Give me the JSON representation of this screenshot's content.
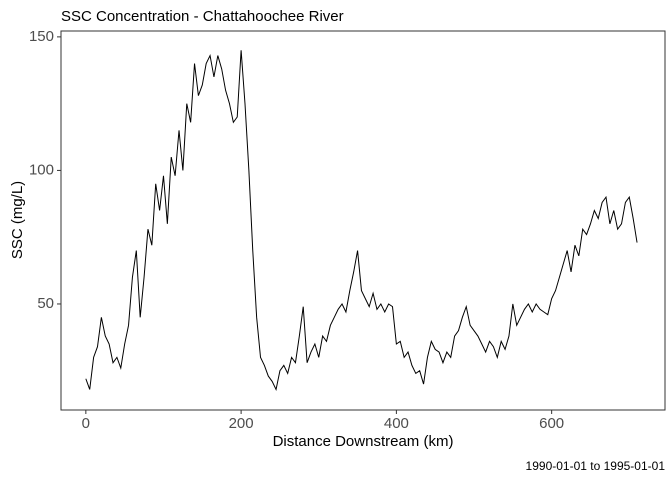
{
  "chart_data": {
    "type": "line",
    "title": "SSC Concentration - Chattahoochee River",
    "x_label": "Distance Downstream (km)",
    "y_label": "SSC (mg/L)",
    "caption": "1990-01-01 to 1995-01-01",
    "xlim": [
      -32,
      746
    ],
    "ylim": [
      10.3,
      152.2
    ],
    "xticks": [
      0,
      200,
      400,
      600
    ],
    "yticks": [
      50,
      100,
      150
    ],
    "grid": false,
    "series": [
      {
        "name": "SSC",
        "color": "#000000",
        "x": [
          0,
          5,
          10,
          15,
          20,
          25,
          30,
          35,
          40,
          45,
          50,
          55,
          60,
          65,
          70,
          75,
          80,
          85,
          90,
          95,
          100,
          105,
          110,
          115,
          120,
          125,
          130,
          135,
          140,
          145,
          150,
          155,
          160,
          165,
          170,
          175,
          180,
          185,
          190,
          195,
          200,
          205,
          210,
          215,
          220,
          225,
          230,
          235,
          240,
          245,
          250,
          255,
          260,
          265,
          270,
          275,
          280,
          285,
          290,
          295,
          300,
          305,
          310,
          315,
          320,
          325,
          330,
          335,
          340,
          345,
          350,
          355,
          360,
          365,
          370,
          375,
          380,
          385,
          390,
          395,
          400,
          405,
          410,
          415,
          420,
          425,
          430,
          435,
          440,
          445,
          450,
          455,
          460,
          465,
          470,
          475,
          480,
          485,
          490,
          495,
          500,
          505,
          510,
          515,
          520,
          525,
          530,
          535,
          540,
          545,
          550,
          555,
          560,
          565,
          570,
          575,
          580,
          585,
          590,
          595,
          600,
          605,
          610,
          615,
          620,
          625,
          630,
          635,
          640,
          645,
          650,
          655,
          660,
          665,
          670,
          675,
          680,
          685,
          690,
          695,
          700,
          705,
          710
        ],
        "values": [
          22,
          18,
          30,
          34,
          45,
          38,
          35,
          28,
          30,
          26,
          35,
          42,
          60,
          70,
          45,
          60,
          78,
          72,
          95,
          85,
          98,
          80,
          105,
          98,
          115,
          100,
          125,
          118,
          140,
          128,
          132,
          140,
          143,
          135,
          143,
          138,
          130,
          125,
          118,
          120,
          145,
          125,
          100,
          70,
          45,
          30,
          27,
          23,
          21,
          18,
          25,
          27,
          24,
          30,
          28,
          38,
          49,
          28,
          32,
          35,
          30,
          38,
          36,
          42,
          45,
          48,
          50,
          47,
          55,
          62,
          70,
          55,
          52,
          49,
          54,
          48,
          50,
          47,
          50,
          49,
          35,
          36,
          30,
          32,
          27,
          24,
          25,
          20,
          30,
          36,
          33,
          32,
          28,
          32,
          30,
          38,
          40,
          45,
          49,
          42,
          40,
          38,
          35,
          32,
          36,
          34,
          30,
          36,
          33,
          38,
          50,
          42,
          45,
          48,
          50,
          47,
          50,
          48,
          47,
          46,
          52,
          55,
          60,
          65,
          70,
          62,
          72,
          68,
          78,
          76,
          80,
          85,
          82,
          88,
          90,
          80,
          85,
          78,
          80,
          88,
          90,
          82,
          73
        ]
      }
    ]
  }
}
